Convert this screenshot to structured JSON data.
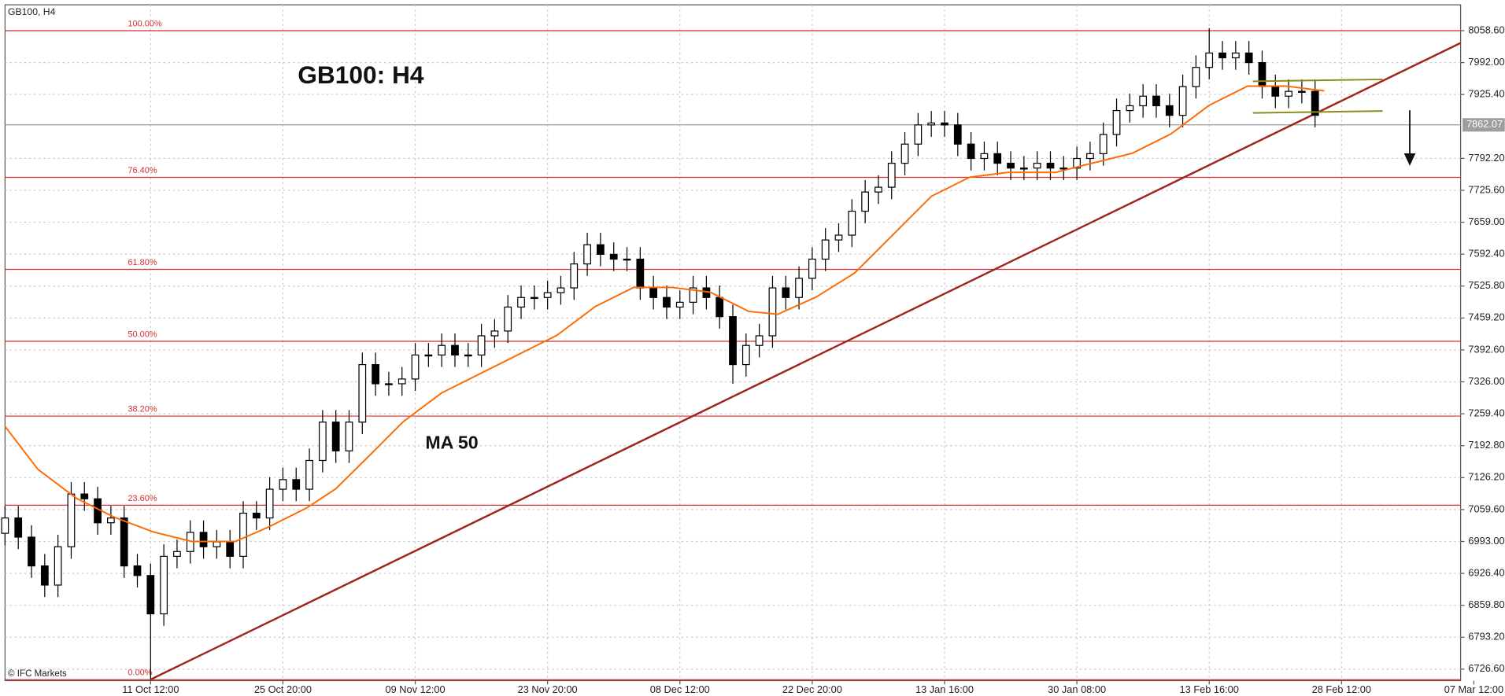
{
  "chart_data": {
    "type": "candlestick",
    "header": "GB100, H4",
    "title": "GB100: H4",
    "annotation": "MA 50",
    "watermark": "© IFC Markets",
    "up_color": "#ffffff",
    "down_color": "#000000",
    "xlim": [
      0,
      110
    ],
    "ylim": [
      6702.6,
      8112.6
    ],
    "grid": true,
    "xticks": [
      {
        "value": 11,
        "label": "11 Oct 12:00"
      },
      {
        "value": 21,
        "label": "25 Oct 20:00"
      },
      {
        "value": 31,
        "label": "09 Nov 12:00"
      },
      {
        "value": 41,
        "label": "23 Nov 20:00"
      },
      {
        "value": 51,
        "label": "08 Dec 12:00"
      },
      {
        "value": 61,
        "label": "22 Dec 20:00"
      },
      {
        "value": 71,
        "label": "13 Jan 16:00"
      },
      {
        "value": 81,
        "label": "30 Jan 08:00"
      },
      {
        "value": 91,
        "label": "13 Feb 16:00"
      },
      {
        "value": 101,
        "label": "28 Feb 12:00"
      },
      {
        "value": 111,
        "label": "07 Mar 12:00"
      }
    ],
    "yticks": [
      {
        "value": 8058.6,
        "label": "8058.60"
      },
      {
        "value": 7992,
        "label": "7992.00"
      },
      {
        "value": 7925.4,
        "label": "7925.40"
      },
      {
        "value": 7792.2,
        "label": "7792.20"
      },
      {
        "value": 7725.6,
        "label": "7725.60"
      },
      {
        "value": 7659,
        "label": "7659.00"
      },
      {
        "value": 7592.4,
        "label": "7592.40"
      },
      {
        "value": 7525.8,
        "label": "7525.80"
      },
      {
        "value": 7459.2,
        "label": "7459.20"
      },
      {
        "value": 7392.6,
        "label": "7392.60"
      },
      {
        "value": 7326,
        "label": "7326.00"
      },
      {
        "value": 7259.4,
        "label": "7259.40"
      },
      {
        "value": 7192.8,
        "label": "7192.80"
      },
      {
        "value": 7126.2,
        "label": "7126.20"
      },
      {
        "value": 7059.6,
        "label": "7059.60"
      },
      {
        "value": 6993,
        "label": "6993.00"
      },
      {
        "value": 6926.4,
        "label": "6926.40"
      },
      {
        "value": 6859.8,
        "label": "6859.80"
      },
      {
        "value": 6793.2,
        "label": "6793.20"
      },
      {
        "value": 6726.6,
        "label": "6726.60"
      }
    ],
    "last_price": 7862.07,
    "last_price_color": "#9e9e9e",
    "open": [
      7010,
      7042,
      7002,
      6942,
      6902,
      6982,
      7092,
      7082,
      7032,
      7042,
      6942,
      6922,
      6842,
      6962,
      6972,
      7012,
      6982,
      6992,
      6962,
      7052,
      7042,
      7102,
      7122,
      7102,
      7162,
      7242,
      7182,
      7242,
      7362,
      7322,
      7322,
      7332,
      7382,
      7382,
      7402,
      7382,
      7382,
      7422,
      7432,
      7482,
      7502,
      7502,
      7512,
      7522,
      7572,
      7612,
      7592,
      7582,
      7582,
      7522,
      7502,
      7482,
      7492,
      7522,
      7502,
      7462,
      7362,
      7402,
      7422,
      7522,
      7502,
      7542,
      7582,
      7622,
      7632,
      7682,
      7722,
      7732,
      7782,
      7822,
      7862,
      7866,
      7862,
      7822,
      7792,
      7802,
      7782,
      7772,
      7772,
      7782,
      7772,
      7772,
      7792,
      7802,
      7842,
      7892,
      7902,
      7922,
      7902,
      7882,
      7942,
      7982,
      8012,
      8002,
      8012,
      7992,
      7942,
      7922,
      7932,
      7932
    ],
    "high": [
      7067,
      7067,
      7027,
      6967,
      7007,
      7117,
      7117,
      7107,
      7067,
      7067,
      6967,
      6947,
      6987,
      6997,
      7037,
      7037,
      7017,
      7017,
      7077,
      7077,
      7127,
      7147,
      7147,
      7187,
      7267,
      7267,
      7267,
      7387,
      7387,
      7347,
      7357,
      7407,
      7407,
      7427,
      7427,
      7407,
      7447,
      7457,
      7507,
      7527,
      7527,
      7537,
      7547,
      7597,
      7637,
      7637,
      7617,
      7607,
      7607,
      7547,
      7527,
      7517,
      7547,
      7547,
      7527,
      7487,
      7427,
      7447,
      7547,
      7547,
      7567,
      7607,
      7647,
      7657,
      7707,
      7747,
      7757,
      7807,
      7847,
      7887,
      7891,
      7891,
      7887,
      7847,
      7827,
      7827,
      7807,
      7797,
      7807,
      7807,
      7797,
      7817,
      7827,
      7867,
      7917,
      7927,
      7947,
      7947,
      7927,
      7967,
      8007,
      8064,
      8037,
      8037,
      8037,
      8017,
      7967,
      7957,
      7957,
      7957
    ],
    "low": [
      6985,
      6977,
      6917,
      6877,
      6877,
      6957,
      7057,
      7007,
      7007,
      6917,
      6897,
      6705,
      6817,
      6937,
      6947,
      6957,
      6957,
      6937,
      6937,
      7017,
      7017,
      7077,
      7077,
      7077,
      7137,
      7157,
      7157,
      7217,
      7297,
      7297,
      7297,
      7307,
      7357,
      7357,
      7357,
      7357,
      7357,
      7397,
      7407,
      7457,
      7477,
      7477,
      7487,
      7497,
      7547,
      7567,
      7557,
      7557,
      7497,
      7477,
      7457,
      7457,
      7467,
      7477,
      7437,
      7322,
      7337,
      7377,
      7397,
      7477,
      7477,
      7517,
      7557,
      7597,
      7607,
      7657,
      7697,
      7707,
      7757,
      7797,
      7837,
      7837,
      7797,
      7767,
      7767,
      7757,
      7747,
      7747,
      7747,
      7747,
      7747,
      7747,
      7767,
      7777,
      7817,
      7867,
      7877,
      7877,
      7857,
      7857,
      7917,
      7957,
      7977,
      7977,
      7967,
      7917,
      7897,
      7897,
      7907,
      7857
    ],
    "close": [
      7042,
      7002,
      6942,
      6902,
      6982,
      7092,
      7082,
      7032,
      7042,
      6942,
      6922,
      6842,
      6962,
      6972,
      7012,
      6982,
      6992,
      6962,
      7052,
      7042,
      7102,
      7122,
      7102,
      7162,
      7242,
      7182,
      7242,
      7362,
      7322,
      7322,
      7332,
      7382,
      7382,
      7402,
      7382,
      7382,
      7422,
      7432,
      7482,
      7502,
      7502,
      7512,
      7522,
      7572,
      7612,
      7592,
      7582,
      7582,
      7522,
      7502,
      7482,
      7492,
      7522,
      7502,
      7462,
      7362,
      7402,
      7422,
      7522,
      7502,
      7542,
      7582,
      7622,
      7632,
      7682,
      7722,
      7732,
      7782,
      7822,
      7862,
      7866,
      7862,
      7822,
      7792,
      7802,
      7782,
      7772,
      7772,
      7782,
      7772,
      7772,
      7792,
      7802,
      7842,
      7892,
      7902,
      7922,
      7902,
      7882,
      7942,
      7982,
      8012,
      8002,
      8012,
      7992,
      7942,
      7922,
      7932,
      7932,
      7882
    ],
    "series": [
      {
        "color": "#ff6a00",
        "x": [
          0,
          2.5,
          5.4,
          8.3,
          11.2,
          14.1,
          17.4,
          19.9,
          22.8,
          25.0,
          27.2,
          30.1,
          33.0,
          35.9,
          38.8,
          41.7,
          44.6,
          47.5,
          50.4,
          53.3,
          56.2,
          58.4,
          61.3,
          64.2,
          67.1,
          70.0,
          72.9,
          75.8,
          79.4,
          82.3,
          85.2,
          88.1,
          91.0,
          93.9,
          96.8,
          99.7
        ],
        "values": [
          7233,
          7143,
          7083,
          7043,
          7013,
          6993,
          6993,
          7023,
          7063,
          7103,
          7163,
          7243,
          7303,
          7343,
          7383,
          7423,
          7483,
          7523,
          7523,
          7513,
          7473,
          7467,
          7503,
          7553,
          7633,
          7713,
          7753,
          7763,
          7763,
          7783,
          7803,
          7843,
          7903,
          7943,
          7943,
          7933
        ]
      }
    ],
    "trendline": {
      "color": "#a0241c",
      "x": [
        11,
        110
      ],
      "values": [
        6705,
        8033
      ]
    },
    "channel": {
      "color": "#8b8b1a",
      "x": [
        94.3,
        104.1
      ],
      "upper": [
        7953,
        7957
      ],
      "lower": [
        7887,
        7891
      ]
    },
    "fib_color": "#d32f2f",
    "fib_levels": [
      {
        "value": 8058.6,
        "label": "100.00%"
      },
      {
        "value": 7752.6,
        "label": "76.40%"
      },
      {
        "value": 7560.6,
        "label": "61.80%"
      },
      {
        "value": 7410.6,
        "label": "50.00%"
      },
      {
        "value": 7254.6,
        "label": "38.20%"
      },
      {
        "value": 7068.6,
        "label": "23.60%"
      },
      {
        "value": 6704.6,
        "label": "0.00%"
      }
    ]
  }
}
